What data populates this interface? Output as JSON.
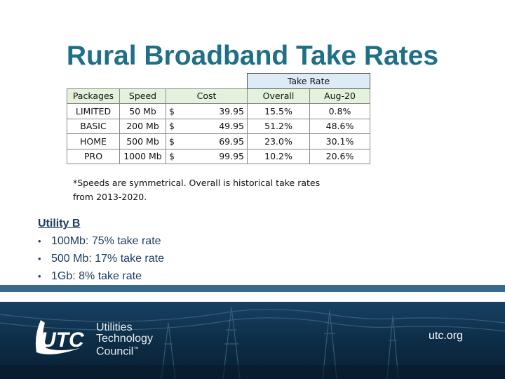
{
  "title": "Rural Broadband Take Rates",
  "table": {
    "take_rate_header": "Take Rate",
    "columns": [
      "Packages",
      "Speed",
      "Cost",
      "Overall",
      "Aug-20"
    ],
    "rows": [
      {
        "package": "LIMITED",
        "speed": "50 Mb",
        "currency": "$",
        "cost": "39.95",
        "overall": "15.5%",
        "aug20": "0.8%"
      },
      {
        "package": "BASIC",
        "speed": "200 Mb",
        "currency": "$",
        "cost": "49.95",
        "overall": "51.2%",
        "aug20": "48.6%"
      },
      {
        "package": "HOME",
        "speed": "500 Mb",
        "currency": "$",
        "cost": "69.95",
        "overall": "23.0%",
        "aug20": "30.1%"
      },
      {
        "package": "PRO",
        "speed": "1000 Mb",
        "currency": "$",
        "cost": "99.95",
        "overall": "10.2%",
        "aug20": "20.6%"
      }
    ]
  },
  "note": {
    "line1": "*Speeds are symmetrical.  Overall is historical take rates",
    "line2": "from 2013-2020."
  },
  "utility": {
    "heading": "Utility B",
    "bullets": [
      "100Mb: 75% take rate",
      "500 Mb: 17% take rate",
      "1Gb: 8% take rate"
    ]
  },
  "footer": {
    "logo_mark": "UTC",
    "logo_line1": "Utilities",
    "logo_line2": "Technology",
    "logo_line3": "Council",
    "trademark": "™",
    "url": "utc.org"
  },
  "colors": {
    "title": "#1f6f86",
    "text_dark_blue": "#1f3d63",
    "footer_bg": "#0d2d46",
    "take_rate_fill": "#dcebf6",
    "header_fill": "#e4f2dc"
  }
}
